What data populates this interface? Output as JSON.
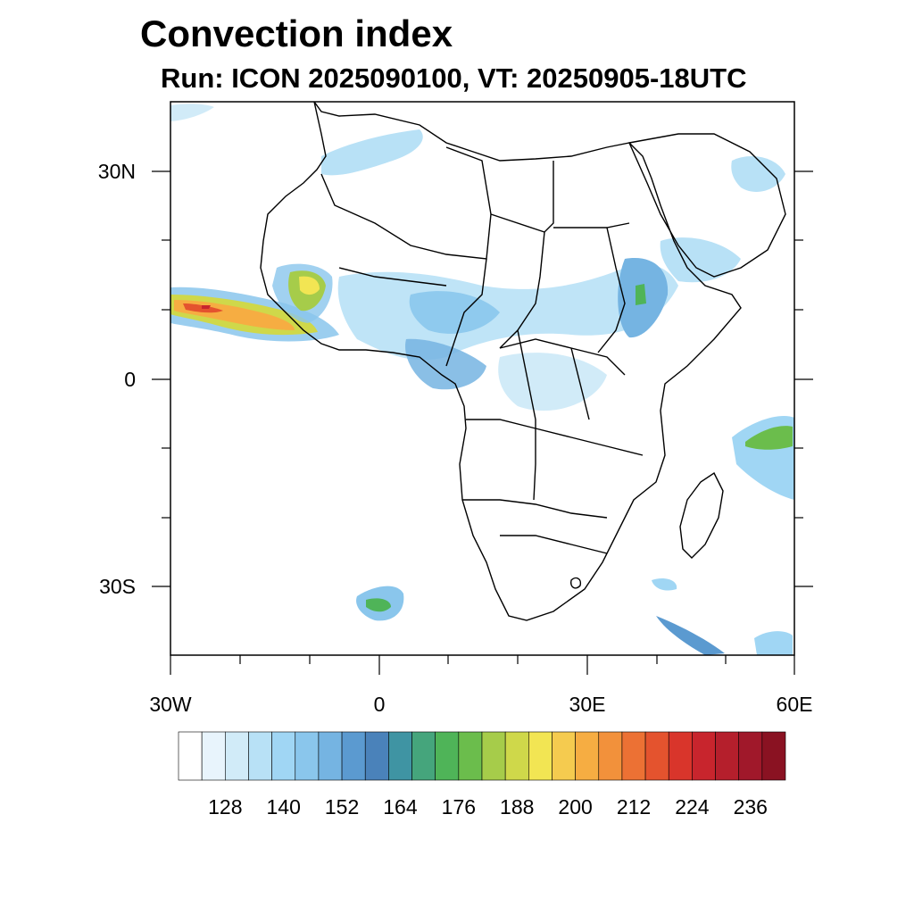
{
  "title": "Convection index",
  "subtitle": "Run: ICON 2025090100,  VT: 20250905-18UTC",
  "axes": {
    "x_tick_labels": [
      "30W",
      "0",
      "30E",
      "60E"
    ],
    "y_tick_labels": [
      "30N",
      "0",
      "30S"
    ],
    "lon_range": [
      -30,
      60
    ],
    "lat_range": [
      -40,
      40
    ]
  },
  "colorbar": {
    "colors": [
      "#ffffff",
      "#e8f4fc",
      "#d1ebf8",
      "#b8e1f6",
      "#a0d6f4",
      "#8ac6ec",
      "#75b4e2",
      "#5b9ad0",
      "#4a82ba",
      "#3f94a3",
      "#45a57c",
      "#4fb458",
      "#6bbd4c",
      "#a6cc4a",
      "#cfd84a",
      "#f2e553",
      "#f5cb4f",
      "#f6ad42",
      "#f2913b",
      "#ec7134",
      "#e4532e",
      "#d9352b",
      "#c8252d",
      "#b51f2c",
      "#a0182a",
      "#8a1222"
    ],
    "tick_labels": [
      "128",
      "140",
      "152",
      "164",
      "176",
      "188",
      "200",
      "212",
      "224",
      "236"
    ]
  }
}
